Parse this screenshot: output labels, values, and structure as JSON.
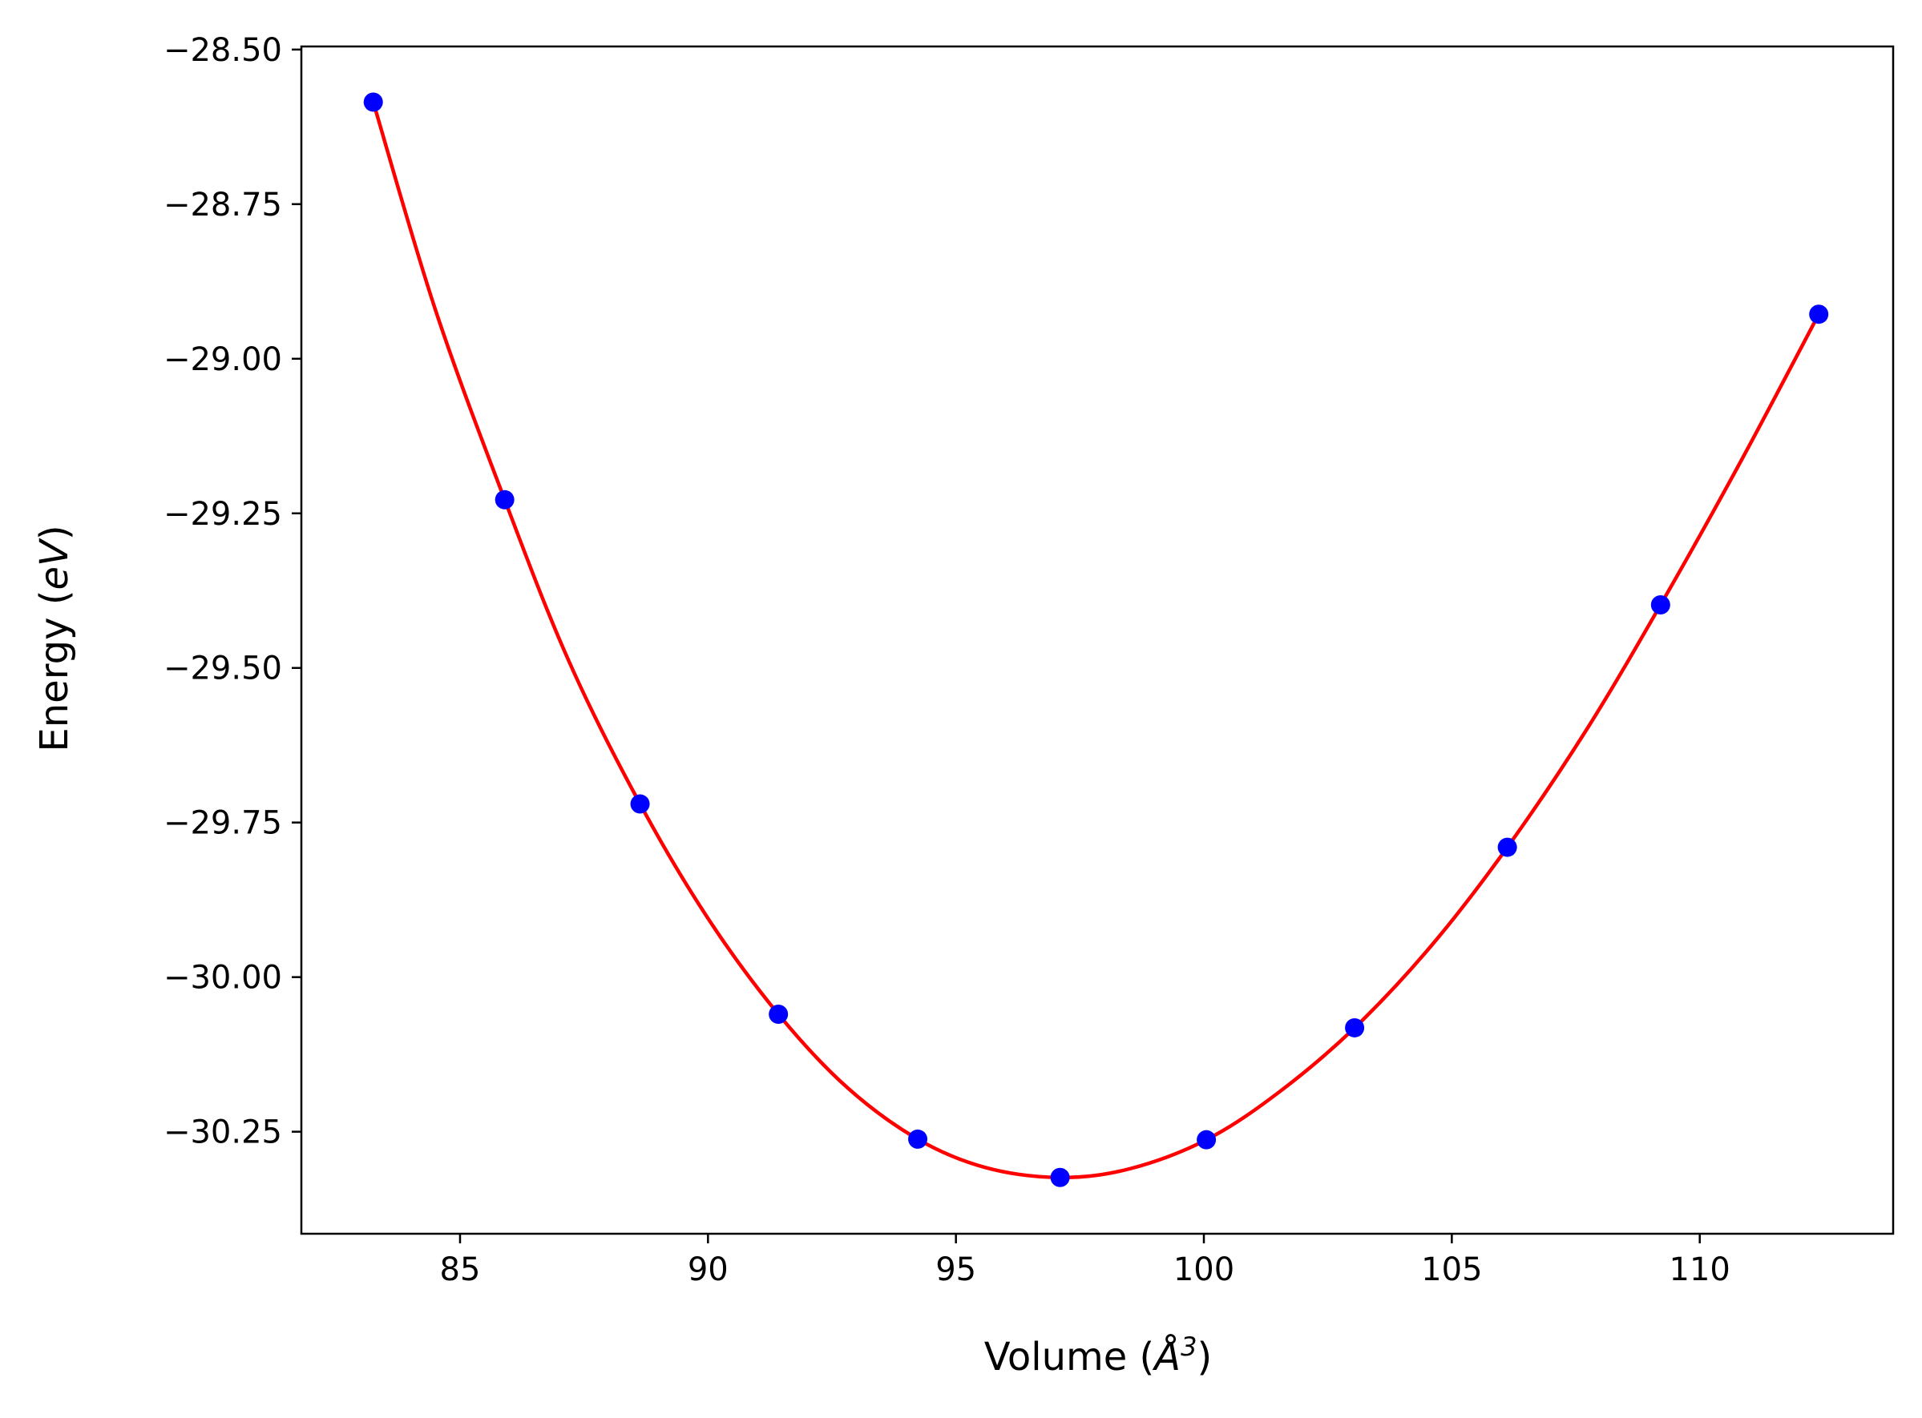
{
  "chart_data": {
    "type": "scatter",
    "title": "",
    "xlabel_text": "Volume (",
    "xlabel_unit": "Å",
    "xlabel_sup": "3",
    "xlabel_close": ")",
    "ylabel_text": "Energy (",
    "ylabel_unit": "eV",
    "ylabel_close": ")",
    "xlim": [
      81.8,
      113.9
    ],
    "ylim": [
      -30.415,
      -28.495
    ],
    "x_ticks": [
      85,
      90,
      95,
      100,
      105,
      110
    ],
    "x_tick_labels": [
      "85",
      "90",
      "95",
      "100",
      "105",
      "110"
    ],
    "y_ticks": [
      -28.5,
      -28.75,
      -29.0,
      -29.25,
      -29.5,
      -29.75,
      -30.0,
      -30.25
    ],
    "y_tick_labels": [
      "−28.50",
      "−28.75",
      "−29.00",
      "−29.25",
      "−29.50",
      "−29.75",
      "−30.00",
      "−30.25"
    ],
    "grid": false,
    "legend": "none",
    "series": [
      {
        "type": "scatter",
        "color": "#0000ff",
        "x": [
          83.25,
          85.9,
          88.63,
          91.42,
          94.23,
          97.1,
          100.05,
          103.04,
          106.12,
          109.21,
          112.4
        ],
        "y": [
          -28.585,
          -29.228,
          -29.72,
          -30.06,
          -30.262,
          -30.324,
          -30.263,
          -30.082,
          -29.79,
          -29.398,
          -28.928
        ]
      },
      {
        "type": "line",
        "color": "#ff0000",
        "x": [
          83.25,
          84.5,
          85.9,
          87.2,
          88.63,
          90.0,
          91.42,
          92.8,
          94.23,
          95.6,
          97.1,
          98.5,
          100.05,
          101.5,
          103.04,
          104.6,
          106.12,
          107.7,
          109.21,
          110.8,
          112.4
        ],
        "y": [
          -28.585,
          -28.92,
          -29.228,
          -29.49,
          -29.72,
          -29.905,
          -30.06,
          -30.178,
          -30.262,
          -30.308,
          -30.324,
          -30.31,
          -30.263,
          -30.187,
          -30.082,
          -29.948,
          -29.79,
          -29.602,
          -29.398,
          -29.17,
          -28.928
        ]
      }
    ]
  }
}
